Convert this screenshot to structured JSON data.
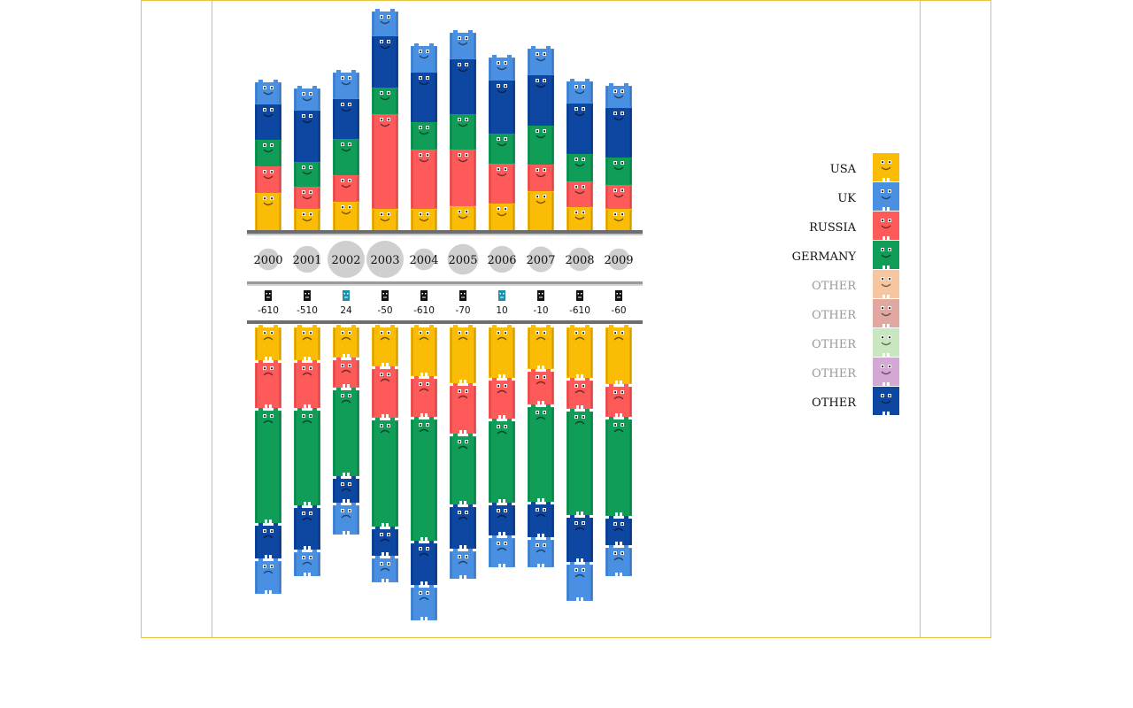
{
  "chart_data": {
    "type": "bar",
    "categories": [
      "2000",
      "2001",
      "2002",
      "2003",
      "2004",
      "2005",
      "2006",
      "2007",
      "2008",
      "2009"
    ],
    "net_values": [
      "-610",
      "-510",
      "24",
      "-50",
      "-610",
      "-70",
      "10",
      "-10",
      "-610",
      "-60"
    ],
    "net_sign": [
      "neg",
      "neg",
      "pos",
      "neg",
      "neg",
      "neg",
      "pos",
      "neg",
      "neg",
      "neg"
    ],
    "volume": [
      0.33,
      0.55,
      1.0,
      1.0,
      0.33,
      0.72,
      0.55,
      0.5,
      0.4,
      0.33
    ],
    "upper_series": [
      {
        "key": "usa",
        "values": [
          48,
          30,
          38,
          30,
          30,
          33,
          36,
          50,
          32,
          30
        ]
      },
      {
        "key": "russia",
        "values": [
          30,
          25,
          30,
          107,
          67,
          64,
          45,
          30,
          29,
          27
        ]
      },
      {
        "key": "germany",
        "values": [
          30,
          28,
          41,
          30,
          31,
          40,
          34,
          44,
          31,
          31
        ]
      },
      {
        "key": "other",
        "values": [
          40,
          58,
          45,
          58,
          56,
          62,
          60,
          57,
          57,
          56
        ]
      },
      {
        "key": "uk",
        "values": [
          25,
          25,
          30,
          28,
          30,
          30,
          26,
          30,
          25,
          25
        ]
      }
    ],
    "lower_series": [
      {
        "key": "usa",
        "values": [
          40,
          40,
          37,
          47,
          58,
          66,
          60,
          50,
          60,
          67
        ]
      },
      {
        "key": "russia",
        "values": [
          54,
          54,
          34,
          58,
          46,
          57,
          46,
          40,
          35,
          37
        ]
      },
      {
        "key": "germany",
        "values": [
          130,
          110,
          100,
          123,
          140,
          80,
          95,
          110,
          120,
          112
        ]
      },
      {
        "key": "other",
        "values": [
          40,
          50,
          30,
          33,
          50,
          50,
          37,
          40,
          53,
          33
        ]
      },
      {
        "key": "uk",
        "values": [
          40,
          30,
          36,
          30,
          40,
          34,
          36,
          34,
          44,
          35
        ]
      }
    ]
  },
  "legend": [
    {
      "key": "usa",
      "label": "USA",
      "color": "#fbbc05",
      "dim": false
    },
    {
      "key": "uk",
      "label": "UK",
      "color": "#4a90e2",
      "dim": false
    },
    {
      "key": "russia",
      "label": "RUSSIA",
      "color": "#ff5a5a",
      "dim": false
    },
    {
      "key": "germany",
      "label": "GERMANY",
      "color": "#0f9d58",
      "dim": false
    },
    {
      "key": "other_1",
      "label": "OTHER",
      "color": "#f6c6a0",
      "dim": true
    },
    {
      "key": "other_2",
      "label": "OTHER",
      "color": "#e0a8a0",
      "dim": true
    },
    {
      "key": "other_3",
      "label": "OTHER",
      "color": "#c8e6c0",
      "dim": true
    },
    {
      "key": "other_4",
      "label": "OTHER",
      "color": "#d4a8d4",
      "dim": true
    },
    {
      "key": "other",
      "label": "OTHER",
      "color": "#0d47a1",
      "dim": false
    }
  ],
  "colors": {
    "usa": "#fbbc05",
    "uk": "#4a90e2",
    "russia": "#ff5a5a",
    "germany": "#0f9d58",
    "other": "#0d47a1",
    "frame": "#e8c33c",
    "divider": "#777777",
    "bubble": "#cfcfcf",
    "positive": "#1e90a8",
    "negative": "#111111"
  }
}
